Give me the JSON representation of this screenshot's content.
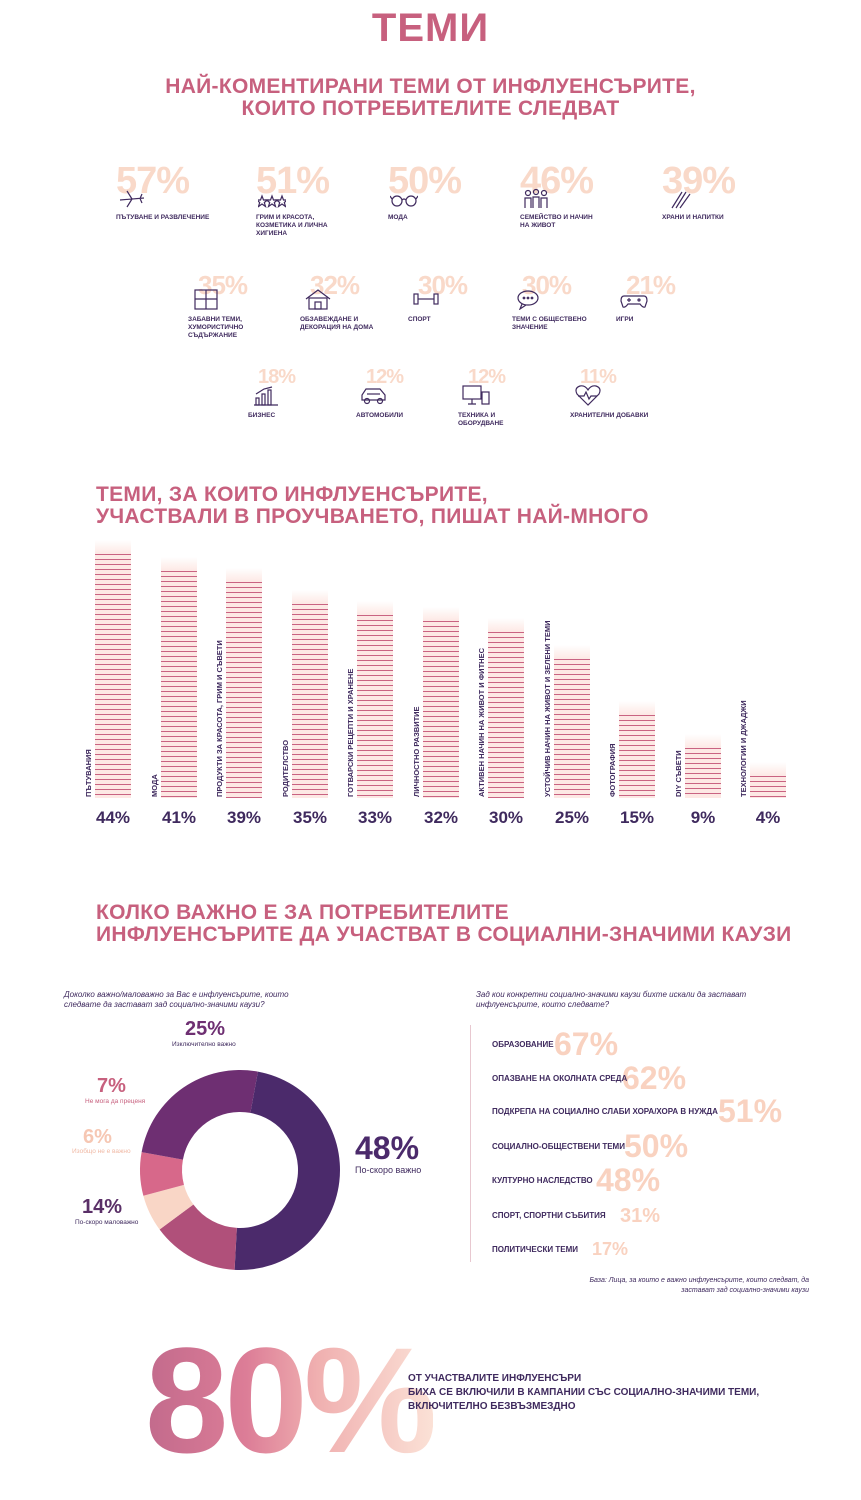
{
  "page": {
    "title": "ТЕМИ"
  },
  "section1": {
    "heading_line1": "НАЙ-КОМЕНТИРАНИ ТЕМИ ОТ ИНФЛУЕНСЪРИТЕ,",
    "heading_line2": "КОИТО ПОТРЕБИТЕЛИТЕ СЛЕДВАТ",
    "topics": [
      {
        "pct": "57%",
        "label": "ПЪТУВАНЕ И РАЗВЛЕЧЕНИЕ",
        "icon": "plane-icon"
      },
      {
        "pct": "51%",
        "label": "ГРИМ И КРАСОТА, КОЗМЕТИКА И ЛИЧНА ХИГИЕНА",
        "icon": "stars-icon"
      },
      {
        "pct": "50%",
        "label": "МОДА",
        "icon": "glasses-icon"
      },
      {
        "pct": "46%",
        "label": "СЕМЕЙСТВО И НАЧИН НА ЖИВОТ",
        "icon": "family-icon"
      },
      {
        "pct": "39%",
        "label": "ХРАНИ И НАПИТКИ",
        "icon": "food-icon"
      },
      {
        "pct": "35%",
        "label": "ЗАБАВНИ ТЕМИ, ХУМОРИСТИЧНО СЪДЪРЖАНИЕ",
        "icon": "puzzle-icon"
      },
      {
        "pct": "32%",
        "label": "ОБЗАВЕЖДАНЕ И ДЕКОРАЦИЯ НА ДОМА",
        "icon": "house-icon"
      },
      {
        "pct": "30%",
        "label": "СПОРТ",
        "icon": "dumbbell-icon"
      },
      {
        "pct": "30%",
        "label": "ТЕМИ С ОБЩЕСТВЕНО ЗНАЧЕНИЕ",
        "icon": "chat-icon"
      },
      {
        "pct": "21%",
        "label": "ИГРИ",
        "icon": "gamepad-icon"
      },
      {
        "pct": "18%",
        "label": "БИЗНЕС",
        "icon": "growth-chart-icon"
      },
      {
        "pct": "12%",
        "label": "АВТОМОБИЛИ",
        "icon": "car-icon"
      },
      {
        "pct": "12%",
        "label": "ТЕХНИКА И ОБОРУДВАНЕ",
        "icon": "devices-icon"
      },
      {
        "pct": "11%",
        "label": "ХРАНИТЕЛНИ ДОБАВКИ",
        "icon": "heart-pulse-icon"
      }
    ]
  },
  "section2": {
    "heading_line1": "ТЕМИ, ЗА КОИТО ИНФЛУЕНСЪРИТЕ,",
    "heading_line2": "УЧАСТВАЛИ В ПРОУЧВАНЕТО, ПИШАТ НАЙ-МНОГО"
  },
  "chart_data": {
    "type": "bar",
    "categories": [
      "ПЪТУВАНИЯ",
      "МОДА",
      "ПРОДУКТИ ЗА КРАСОТА, ГРИМ И СЪВЕТИ",
      "РОДИТЕЛСТВО",
      "ГОТВАРСКИ РЕЦЕПТИ И ХРАНЕНЕ",
      "ЛИЧНОСТНО РАЗВИТИЕ",
      "АКТИВЕН НАЧИН НА ЖИВОТ И ФИТНЕС",
      "УСТОЙЧИВ НАЧИН НА ЖИВОТ И ЗЕЛЕНИ ТЕМИ",
      "ФОТОГРАФИЯ",
      "DIY СЪВЕТИ",
      "ТЕХНОЛОГИИ И ДЖАДЖИ"
    ],
    "values": [
      44,
      41,
      39,
      35,
      33,
      32,
      30,
      25,
      15,
      9,
      4
    ],
    "value_labels": [
      "44%",
      "41%",
      "39%",
      "35%",
      "33%",
      "32%",
      "30%",
      "25%",
      "15%",
      "9%",
      "4%"
    ],
    "ylim": [
      0,
      44
    ]
  },
  "section3": {
    "heading_line1": "КОЛКО ВАЖНО Е ЗА ПОТРЕБИТЕЛИТЕ",
    "heading_line2": "ИНФЛУЕНСЪРИТЕ ДА УЧАСТВАТ В СОЦИАЛНИ-ЗНАЧИМИ КАУЗИ",
    "donut_question": "Доколко важно/маловажно за Вас е инфлуенсърите, които следвате да застават зад социално-значими каузи?",
    "donut": [
      {
        "pct": "48%",
        "label": "По-скоро важно",
        "value": 48,
        "color": "#4b2a6b"
      },
      {
        "pct": "14%",
        "label": "По-скоро маловажно",
        "value": 14,
        "color": "#b0507a"
      },
      {
        "pct": "6%",
        "label": "Изобщо не е важно",
        "value": 6,
        "color": "#f9d6c6"
      },
      {
        "pct": "7%",
        "label": "Не мога да преценя",
        "value": 7,
        "color": "#d7688a"
      },
      {
        "pct": "25%",
        "label": "Изключително важно",
        "value": 25,
        "color": "#6e2f72"
      }
    ],
    "causes_question": "Зад кои конкретни социално-значими каузи бихте искали да застават инфлуенсърите, които следвате?",
    "causes": [
      {
        "label": "ОБРАЗОВАНИЕ",
        "pct": "67%"
      },
      {
        "label": "ОПАЗВАНЕ НА ОКОЛНАТА СРЕДА",
        "pct": "62%"
      },
      {
        "label": "ПОДКРЕПА НА СОЦИАЛНО СЛАБИ ХОРА/ХОРА В НУЖДА",
        "pct": "51%"
      },
      {
        "label": "СОЦИАЛНО-ОБЩЕСТВЕНИ ТЕМИ",
        "pct": "50%"
      },
      {
        "label": "КУЛТУРНО НАСЛЕДСТВО",
        "pct": "48%"
      },
      {
        "label": "СПОРТ, СПОРТНИ СЪБИТИЯ",
        "pct": "31%"
      },
      {
        "label": "ПОЛИТИЧЕСКИ ТЕМИ",
        "pct": "17%"
      }
    ],
    "base_line1": "База: Лица, за които е важно инфлуенсърите, които следват, да",
    "base_line2": "застават зад социално-значими каузи"
  },
  "footer": {
    "big_pct": "80%",
    "text_line1": "ОТ УЧАСТВАЛИТЕ ИНФЛУЕНСЪРИ",
    "text_line2": "БИХА СЕ ВКЛЮЧИЛИ В КАМПАНИИ СЪС СОЦИАЛНО-ЗНАЧИМИ ТЕМИ,",
    "text_line3": "ВКЛЮЧИТЕЛНО БЕЗВЪЗМЕЗДНО"
  }
}
